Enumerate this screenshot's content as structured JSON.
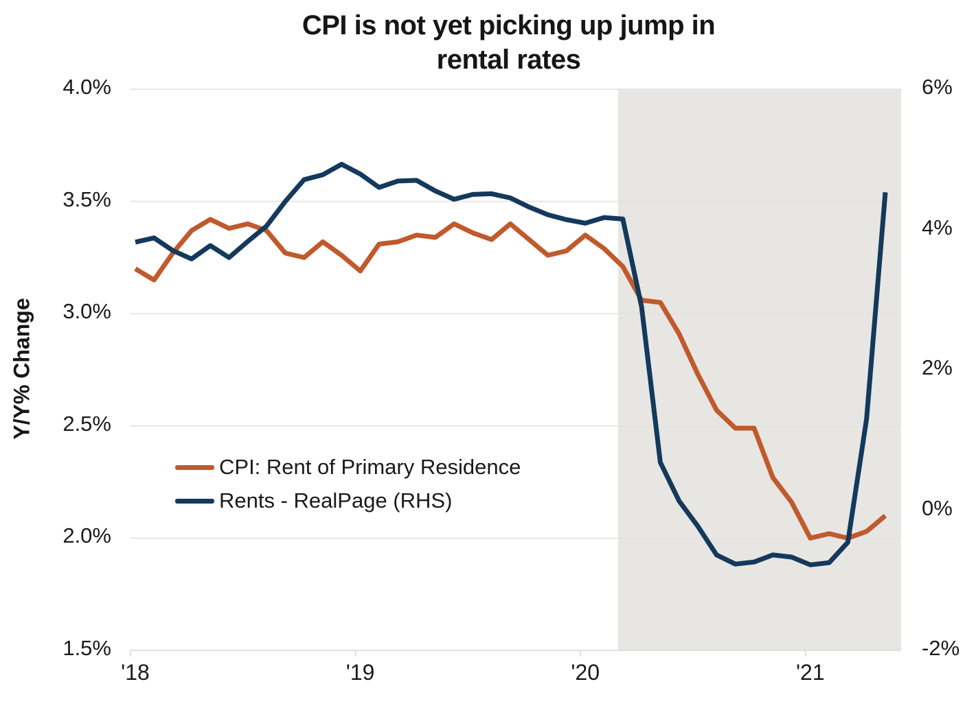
{
  "title": {
    "line1": "CPI is not yet picking up jump in",
    "line2": "rental rates"
  },
  "chart_data": {
    "type": "line",
    "title": "CPI is not yet picking up jump in rental rates",
    "grid": "horizontal-only",
    "legend_position": "inside-left-lower",
    "x": [
      "2018-01",
      "2018-02",
      "2018-03",
      "2018-04",
      "2018-05",
      "2018-06",
      "2018-07",
      "2018-08",
      "2018-09",
      "2018-10",
      "2018-11",
      "2018-12",
      "2019-01",
      "2019-02",
      "2019-03",
      "2019-04",
      "2019-05",
      "2019-06",
      "2019-07",
      "2019-08",
      "2019-09",
      "2019-10",
      "2019-11",
      "2019-12",
      "2020-01",
      "2020-02",
      "2020-03",
      "2020-04",
      "2020-05",
      "2020-06",
      "2020-07",
      "2020-08",
      "2020-09",
      "2020-10",
      "2020-11",
      "2020-12",
      "2021-01",
      "2021-02",
      "2021-03",
      "2021-04",
      "2021-05"
    ],
    "x_tick_labels": [
      "'18",
      "'19",
      "'20",
      "'21"
    ],
    "left_axis": {
      "label": "Y/Y% Change",
      "tick_labels": [
        "4.0%",
        "3.5%",
        "3.0%",
        "2.5%",
        "2.0%",
        "1.5%"
      ],
      "tick_values": [
        4.0,
        3.5,
        3.0,
        2.5,
        2.0,
        1.5
      ],
      "range": [
        1.5,
        4.0
      ]
    },
    "right_axis": {
      "tick_labels": [
        "6%",
        "4%",
        "2%",
        "0%",
        "-2%"
      ],
      "tick_values": [
        6,
        4,
        2,
        0,
        -2
      ],
      "range": [
        -2,
        6
      ]
    },
    "series": [
      {
        "name": "CPI: Rent of Primary Residence",
        "axis": "left",
        "color": "#c05a2d",
        "values": [
          3.2,
          3.15,
          3.27,
          3.37,
          3.42,
          3.38,
          3.4,
          3.37,
          3.27,
          3.25,
          3.32,
          3.26,
          3.19,
          3.31,
          3.32,
          3.35,
          3.34,
          3.4,
          3.36,
          3.33,
          3.4,
          3.33,
          3.26,
          3.28,
          3.35,
          3.29,
          3.21,
          3.06,
          3.05,
          2.91,
          2.73,
          2.57,
          2.49,
          2.49,
          2.27,
          2.16,
          2.0,
          2.02,
          2.0,
          2.03,
          2.1
        ]
      },
      {
        "name": "Rents - RealPage (RHS)",
        "axis": "right",
        "color": "#14395c",
        "values": [
          3.82,
          3.88,
          3.7,
          3.58,
          3.77,
          3.6,
          3.83,
          4.05,
          4.4,
          4.71,
          4.78,
          4.93,
          4.79,
          4.6,
          4.69,
          4.7,
          4.55,
          4.43,
          4.5,
          4.51,
          4.45,
          4.32,
          4.21,
          4.14,
          4.09,
          4.17,
          4.15,
          2.9,
          0.68,
          0.13,
          -0.23,
          -0.64,
          -0.77,
          -0.74,
          -0.64,
          -0.67,
          -0.78,
          -0.75,
          -0.46,
          1.3,
          4.53
        ]
      }
    ],
    "shaded_region": {
      "start_month": "2020-02",
      "start_index": 25.75,
      "extends_to": "right-edge",
      "color": "#e8e6e2"
    },
    "gridline_color": "#e2e2e2",
    "axis_line_color": "#d9d9d9"
  },
  "legend": {
    "items": [
      {
        "label": "CPI: Rent of Primary Residence",
        "color": "#c05a2d"
      },
      {
        "label": "Rents - RealPage (RHS)",
        "color": "#14395c"
      }
    ]
  }
}
